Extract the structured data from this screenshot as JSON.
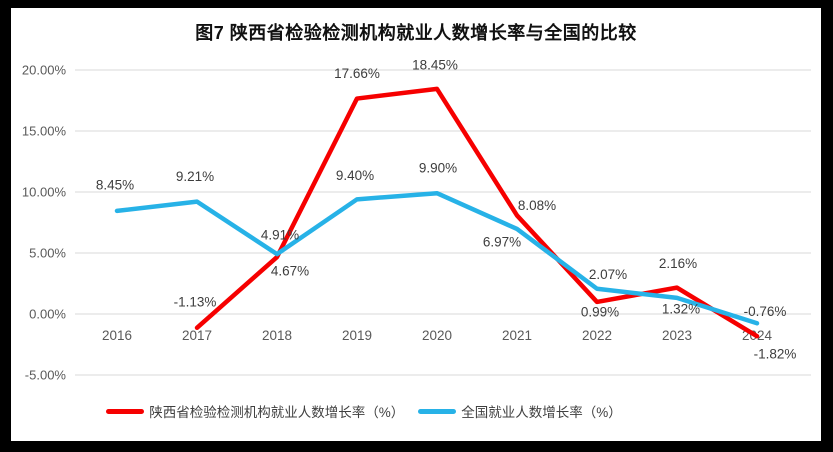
{
  "figure": {
    "title": "图7 陕西省检验检测机构就业人数增长率与全国的比较",
    "frame_color": "#000000",
    "background": "#ffffff",
    "gridline_color": "#d9d9d9",
    "axis_text_color": "#595959"
  },
  "chart_data": {
    "type": "line",
    "title": "图7 陕西省检验检测机构就业人数增长率与全国的比较",
    "categories": [
      "2016",
      "2017",
      "2018",
      "2019",
      "2020",
      "2021",
      "2022",
      "2023",
      "2024"
    ],
    "series": [
      {
        "name": "陕西省检验检测机构就业人数增长率（%）",
        "color": "#f60000",
        "values": [
          null,
          -1.13,
          4.67,
          17.66,
          18.45,
          8.08,
          0.99,
          2.16,
          -1.82
        ],
        "labels": [
          "",
          "-1.13%",
          "4.67%",
          "17.66%",
          "18.45%",
          "8.08%",
          "0.99%",
          "2.16%",
          "-1.82%"
        ]
      },
      {
        "name": "全国就业人数增长率（%）",
        "color": "#27b2e7",
        "values": [
          8.45,
          9.21,
          4.91,
          9.4,
          9.9,
          6.97,
          2.07,
          1.32,
          -0.76
        ],
        "labels": [
          "8.45%",
          "9.21%",
          "4.91%",
          "9.40%",
          "9.90%",
          "6.97%",
          "2.07%",
          "1.32%",
          "-0.76%"
        ]
      }
    ],
    "y_axis": {
      "label_format": "percent",
      "ticks": [
        "20.00%",
        "15.00%",
        "10.00%",
        "5.00%",
        "0.00%",
        "-5.00%"
      ],
      "tick_values": [
        20,
        15,
        10,
        5,
        0,
        -5
      ],
      "min": -5,
      "max": 20,
      "grid": true
    },
    "legend_position": "bottom"
  }
}
